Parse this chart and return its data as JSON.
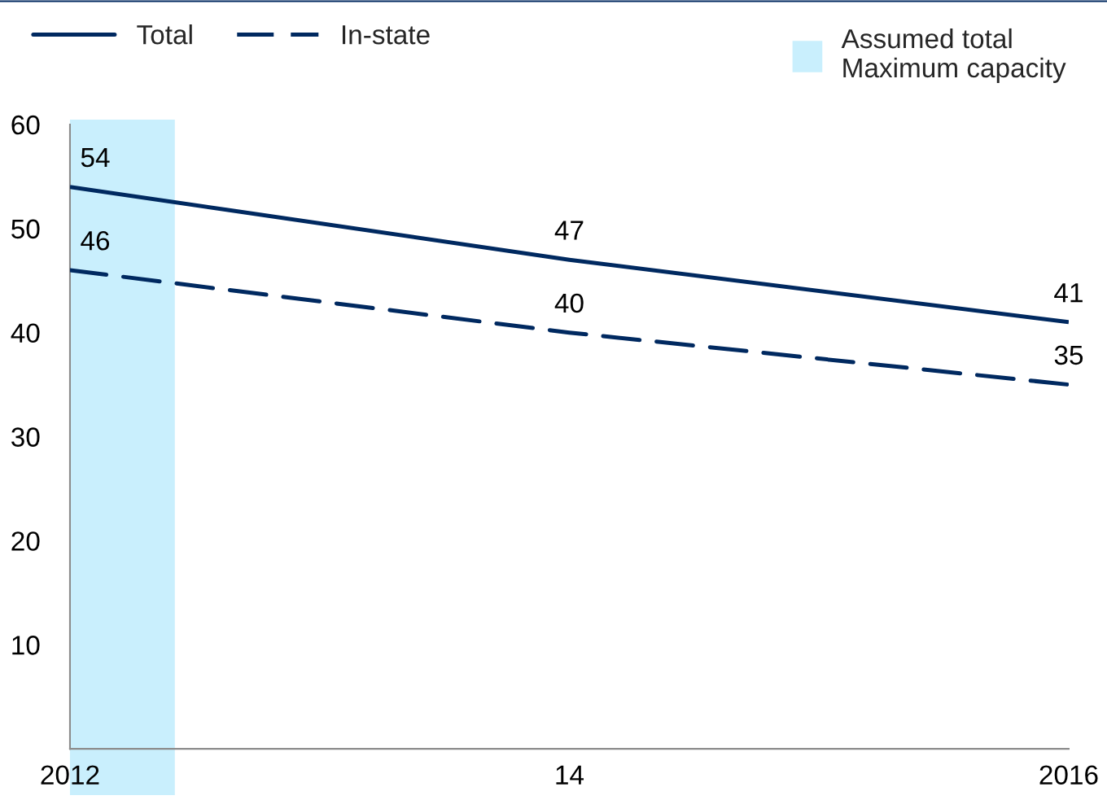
{
  "chart_data": {
    "type": "line",
    "x": [
      2012,
      2014,
      2016
    ],
    "series": [
      {
        "name": "Total",
        "color": "#002960",
        "values": [
          54,
          47,
          41
        ],
        "line_style": "solid"
      },
      {
        "name": "In-state",
        "color": "#002960",
        "values": [
          46,
          40,
          35
        ],
        "line_style": "dashed"
      }
    ],
    "xlim": [
      2012,
      2016
    ],
    "xticks": [
      2012,
      {
        "value": 2014,
        "label": "14"
      },
      2016
    ],
    "ylim": [
      0,
      60
    ],
    "yticks": [
      10,
      20,
      30,
      40,
      50,
      60
    ],
    "bands": [
      {
        "axis": "x",
        "from": 2012,
        "to": 2012.42,
        "label": "Assumed total\nMaximum capacity",
        "color": "#c9effd"
      }
    ],
    "data_labels": true,
    "grid": false,
    "legend": "top",
    "marker": "none"
  }
}
